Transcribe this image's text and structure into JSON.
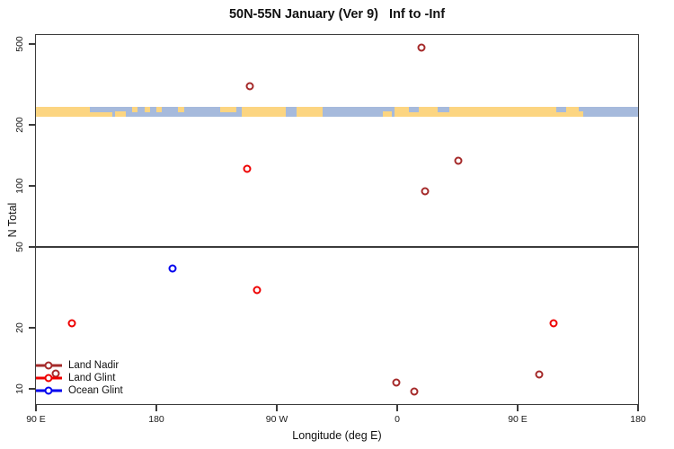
{
  "title": "50N-55N January (Ver 9)   Inf to -Inf",
  "chart_data": {
    "type": "scatter",
    "title": "50N-55N January (Ver 9)   Inf to -Inf",
    "xlabel": "Longitude (deg E)",
    "ylabel": "N Total",
    "x_axis": {
      "lim": [
        90,
        540
      ],
      "ticks": [
        {
          "lon": 90,
          "label": "90 E"
        },
        {
          "lon": 180,
          "label": "180"
        },
        {
          "lon": 270,
          "label": "90 W"
        },
        {
          "lon": 360,
          "label": "0"
        },
        {
          "lon": 450,
          "label": "90 E"
        },
        {
          "lon": 540,
          "label": "180"
        }
      ],
      "note": "longitude axis wraps eastward: 90E,180,90W,0,90E,180"
    },
    "y_axis": {
      "scale": "log",
      "lim": [
        8.4,
        553
      ],
      "ticks": [
        {
          "value": 10,
          "label": "10"
        },
        {
          "value": 20,
          "label": "20"
        },
        {
          "value": 50,
          "label": "50"
        },
        {
          "value": 100,
          "label": "100"
        },
        {
          "value": 200,
          "label": "200"
        },
        {
          "value": 500,
          "label": "500"
        }
      ]
    },
    "reference_line_y": 50,
    "grid": "off",
    "legend_position": "bottom-left",
    "series": [
      {
        "name": "Land Nadir",
        "color": "#A52A2A",
        "marker": "open-circle",
        "points": [
          {
            "lon": 250,
            "n": 310
          },
          {
            "lon": 378,
            "n": 480
          },
          {
            "lon": 406,
            "n": 133
          },
          {
            "lon": 381,
            "n": 94
          },
          {
            "lon": 466,
            "n": 11.8
          },
          {
            "lon": 359,
            "n": 10.7
          },
          {
            "lon": 373,
            "n": 9.7
          },
          {
            "lon": 105,
            "n": 11.9
          }
        ]
      },
      {
        "name": "Land Glint",
        "color": "#EE0000",
        "marker": "open-circle",
        "points": [
          {
            "lon": 248,
            "n": 121
          },
          {
            "lon": 255,
            "n": 30.5
          },
          {
            "lon": 117,
            "n": 21
          },
          {
            "lon": 477,
            "n": 21
          }
        ]
      },
      {
        "name": "Ocean Glint",
        "color": "#0000EE",
        "marker": "open-circle",
        "points": [
          {
            "lon": 192,
            "n": 39
          }
        ]
      }
    ],
    "map_band": {
      "description": "world coastline strip drawn across plot at N Total ~219-245",
      "n_range": [
        219,
        245
      ],
      "land_color": "#FCD581",
      "ocean_color": "#A6BADC",
      "base_segments": [
        {
          "from": 90,
          "to": 147,
          "kind": "land"
        },
        {
          "from": 147,
          "to": 244,
          "kind": "ocean"
        },
        {
          "from": 244,
          "to": 277,
          "kind": "land"
        },
        {
          "from": 277,
          "to": 285,
          "kind": "ocean"
        },
        {
          "from": 285,
          "to": 304,
          "kind": "land"
        },
        {
          "from": 304,
          "to": 358,
          "kind": "ocean"
        },
        {
          "from": 358,
          "to": 496,
          "kind": "land"
        },
        {
          "from": 496,
          "to": 540,
          "kind": "ocean"
        }
      ],
      "speck_segments": [
        {
          "from": 130,
          "to": 147,
          "kind": "ocean",
          "part": "top"
        },
        {
          "from": 149,
          "to": 157,
          "kind": "land",
          "part": "bottom"
        },
        {
          "from": 162,
          "to": 166,
          "kind": "land",
          "part": "top"
        },
        {
          "from": 171,
          "to": 175,
          "kind": "land",
          "part": "top"
        },
        {
          "from": 180,
          "to": 184,
          "kind": "land",
          "part": "top"
        },
        {
          "from": 196,
          "to": 201,
          "kind": "land",
          "part": "top"
        },
        {
          "from": 228,
          "to": 240,
          "kind": "land",
          "part": "top"
        },
        {
          "from": 349,
          "to": 356,
          "kind": "land",
          "part": "bottom"
        },
        {
          "from": 369,
          "to": 376,
          "kind": "ocean",
          "part": "top"
        },
        {
          "from": 390,
          "to": 399,
          "kind": "ocean",
          "part": "top"
        },
        {
          "from": 479,
          "to": 486,
          "kind": "ocean",
          "part": "top"
        },
        {
          "from": 493,
          "to": 499,
          "kind": "land",
          "part": "bottom"
        }
      ]
    }
  }
}
